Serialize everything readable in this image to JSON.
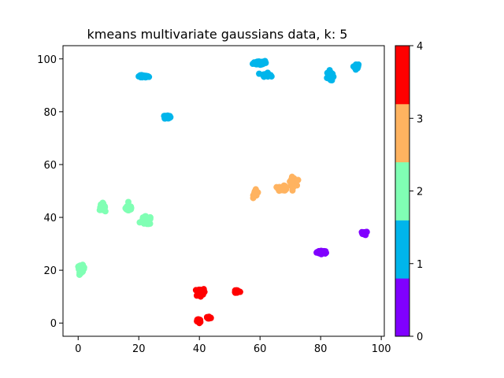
{
  "chart_data": {
    "type": "scatter",
    "title": "kmeans multivariate gaussians data, k: 5",
    "xlabel": "",
    "ylabel": "",
    "xlim": [
      -5,
      101
    ],
    "ylim": [
      -5,
      105
    ],
    "xticks": [
      0,
      20,
      40,
      60,
      80,
      100
    ],
    "yticks": [
      0,
      20,
      40,
      60,
      80,
      100
    ],
    "grid": false,
    "colormap": "rainbow",
    "colorbar": {
      "range": [
        0,
        4
      ],
      "ticks": [
        0,
        1,
        2,
        3,
        4
      ],
      "colors": [
        "#8000ff",
        "#00b5eb",
        "#80ffb4",
        "#ffb360",
        "#ff0000"
      ]
    },
    "clusters": [
      {
        "label": 0,
        "color": "#8000ff",
        "blobs": [
          {
            "x": 80.5,
            "y": 26.8,
            "sx": 1.6,
            "sy": 0.5,
            "n": 40
          },
          {
            "x": 94.5,
            "y": 34.0,
            "sx": 0.8,
            "sy": 0.6,
            "n": 20
          }
        ]
      },
      {
        "label": 1,
        "color": "#00b5eb",
        "blobs": [
          {
            "x": 21.5,
            "y": 93.3,
            "sx": 1.6,
            "sy": 0.4,
            "n": 40
          },
          {
            "x": 29.5,
            "y": 78.0,
            "sx": 0.9,
            "sy": 0.7,
            "n": 25
          },
          {
            "x": 60.0,
            "y": 98.5,
            "sx": 2.0,
            "sy": 0.8,
            "n": 50
          },
          {
            "x": 62.0,
            "y": 94.0,
            "sx": 1.2,
            "sy": 0.6,
            "n": 25
          },
          {
            "x": 83.0,
            "y": 93.5,
            "sx": 0.8,
            "sy": 1.8,
            "n": 35
          },
          {
            "x": 91.8,
            "y": 97.0,
            "sx": 0.6,
            "sy": 0.9,
            "n": 25
          }
        ]
      },
      {
        "label": 2,
        "color": "#80ffb4",
        "blobs": [
          {
            "x": 1.0,
            "y": 20.5,
            "sx": 1.0,
            "sy": 1.2,
            "n": 40
          },
          {
            "x": 8.0,
            "y": 44.0,
            "sx": 0.8,
            "sy": 1.2,
            "n": 35
          },
          {
            "x": 16.8,
            "y": 43.5,
            "sx": 1.0,
            "sy": 1.3,
            "n": 40
          },
          {
            "x": 22.5,
            "y": 38.8,
            "sx": 1.5,
            "sy": 1.4,
            "n": 55
          }
        ]
      },
      {
        "label": 3,
        "color": "#ffb360",
        "blobs": [
          {
            "x": 58.5,
            "y": 49.0,
            "sx": 0.6,
            "sy": 1.2,
            "n": 30
          },
          {
            "x": 67.5,
            "y": 51.0,
            "sx": 1.3,
            "sy": 0.8,
            "n": 40
          },
          {
            "x": 71.0,
            "y": 53.5,
            "sx": 0.9,
            "sy": 1.5,
            "n": 40
          }
        ]
      },
      {
        "label": 4,
        "color": "#ff0000",
        "blobs": [
          {
            "x": 40.0,
            "y": 11.5,
            "sx": 1.3,
            "sy": 1.2,
            "n": 50
          },
          {
            "x": 39.8,
            "y": 0.8,
            "sx": 0.5,
            "sy": 0.8,
            "n": 20
          },
          {
            "x": 43.0,
            "y": 2.0,
            "sx": 0.8,
            "sy": 0.5,
            "n": 20
          },
          {
            "x": 52.5,
            "y": 12.0,
            "sx": 0.8,
            "sy": 0.6,
            "n": 25
          }
        ]
      }
    ]
  }
}
